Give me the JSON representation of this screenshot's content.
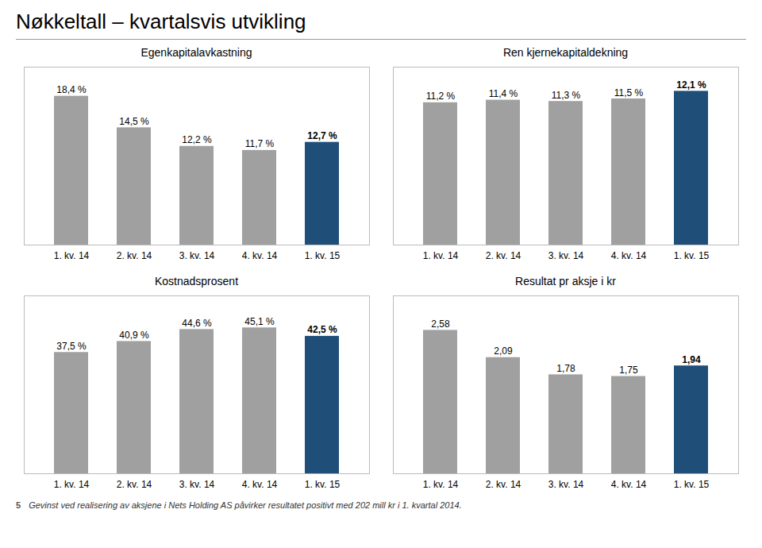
{
  "title": "Nøkkeltall – kvartalsvis utvikling",
  "annotations": [
    "5",
    "Gevinst ved realisering av aksjene i Nets Holding AS påvirker resultatet positivt med 202 mill kr i 1. kvartal 2014."
  ],
  "chart_data": [
    {
      "type": "bar",
      "title": "Egenkapitalavkastning",
      "categories": [
        "1. kv. 14",
        "2. kv. 14",
        "3. kv. 14",
        "4. kv. 14",
        "1. kv. 15"
      ],
      "values": [
        18.4,
        14.5,
        12.2,
        11.7,
        12.7
      ],
      "value_labels": [
        "18,4 %",
        "14,5 %",
        "12,2 %",
        "11,7 %",
        "12,7 %"
      ],
      "colors": [
        "#a0a0a0",
        "#a0a0a0",
        "#a0a0a0",
        "#a0a0a0",
        "#1f4e79"
      ],
      "ylim": [
        0,
        22
      ],
      "data_labels": true,
      "tick_labels": "x",
      "grid": false
    },
    {
      "type": "bar",
      "title": "Ren kjernekapitaldekning",
      "categories": [
        "1. kv. 14",
        "2. kv. 14",
        "3. kv. 14",
        "4. kv. 14",
        "1. kv. 15"
      ],
      "values": [
        11.2,
        11.4,
        11.3,
        11.5,
        12.1
      ],
      "value_labels": [
        "11,2 %",
        "11,4 %",
        "11,3 %",
        "11,5 %",
        "12,1 %"
      ],
      "colors": [
        "#a0a0a0",
        "#a0a0a0",
        "#a0a0a0",
        "#a0a0a0",
        "#1f4e79"
      ],
      "ylim": [
        0,
        14
      ],
      "data_labels": true,
      "tick_labels": "x",
      "grid": false
    },
    {
      "type": "bar",
      "title": "Kostnadsprosent",
      "categories": [
        "1. kv. 14",
        "2. kv. 14",
        "3. kv. 14",
        "4. kv. 14",
        "1. kv. 15"
      ],
      "values": [
        37.5,
        40.9,
        44.6,
        45.1,
        42.5
      ],
      "value_labels": [
        "37,5 %",
        "40,9 %",
        "44,6 %",
        "45,1 %",
        "42,5 %"
      ],
      "colors": [
        "#a0a0a0",
        "#a0a0a0",
        "#a0a0a0",
        "#a0a0a0",
        "#1f4e79"
      ],
      "ylim": [
        0,
        55
      ],
      "data_labels": true,
      "tick_labels": "x",
      "grid": false
    },
    {
      "type": "bar",
      "title": "Resultat pr aksje i kr",
      "categories": [
        "1. kv. 14",
        "2. kv. 14",
        "3. kv. 14",
        "4. kv. 14",
        "1. kv. 15"
      ],
      "values": [
        2.58,
        2.09,
        1.78,
        1.75,
        1.94
      ],
      "value_labels": [
        "2,58",
        "2,09",
        "1,78",
        "1,75",
        "1,94"
      ],
      "colors": [
        "#a0a0a0",
        "#a0a0a0",
        "#a0a0a0",
        "#a0a0a0",
        "#1f4e79"
      ],
      "ylim": [
        0,
        3.2
      ],
      "data_labels": true,
      "tick_labels": "x",
      "grid": false
    }
  ]
}
